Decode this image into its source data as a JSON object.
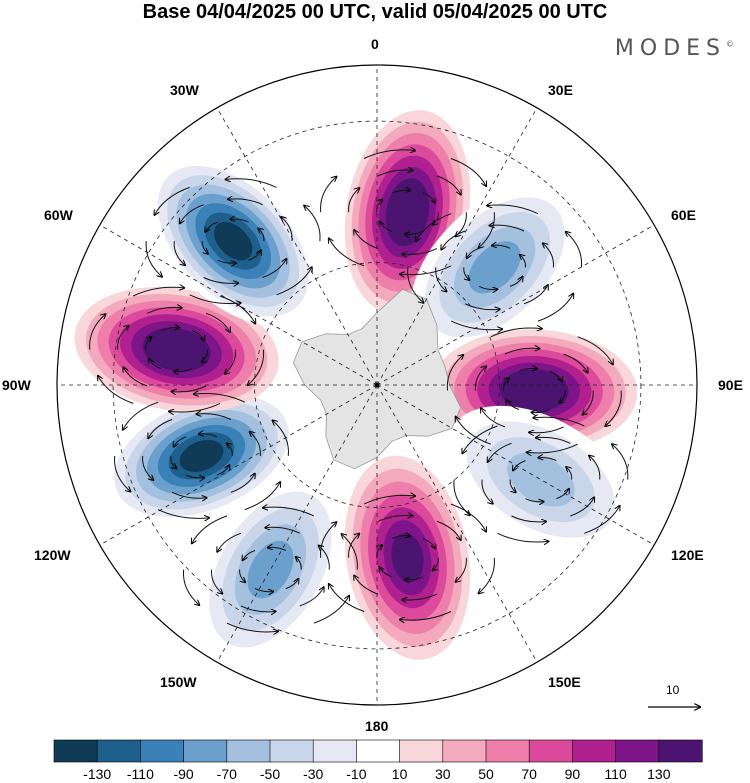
{
  "title": "Base 04/04/2025 00 UTC, valid 05/04/2025 00 UTC",
  "logo": {
    "text": "MODES",
    "mark": "©"
  },
  "longitude_labels": {
    "top": "0",
    "top_right": "30E",
    "right_upper": "60E",
    "right": "90E",
    "right_lower": "120E",
    "bottom_right": "150E",
    "bottom": "180",
    "bottom_left": "150W",
    "left_lower": "120W",
    "left": "90W",
    "left_upper": "60W",
    "top_left": "30W"
  },
  "reference_vector": {
    "label": "10"
  },
  "colorbar": {
    "labels": [
      "-130",
      "-110",
      "-90",
      "-70",
      "-50",
      "-30",
      "-10",
      "10",
      "30",
      "50",
      "70",
      "90",
      "110",
      "130"
    ],
    "colors": [
      "#0f3b57",
      "#1f5f8b",
      "#3a81b8",
      "#6ba0cc",
      "#a3c0de",
      "#c9d6ea",
      "#e6e8f3",
      "#ffffff",
      "#f9d6da",
      "#f4aabd",
      "#ee7fab",
      "#dc4a9c",
      "#b0208e",
      "#7d1588",
      "#4a1470"
    ]
  },
  "field": {
    "projection": "south-polar-stereographic",
    "pattern": "wavenumber-5 alternating positive/negative anomalies",
    "anomaly_centres": [
      {
        "lon": 10,
        "lat": -48,
        "value": 130
      },
      {
        "lon": 45,
        "lat": -50,
        "value": -70
      },
      {
        "lon": 92,
        "lat": -52,
        "value": 130
      },
      {
        "lon": 120,
        "lat": -45,
        "value": -50
      },
      {
        "lon": 170,
        "lat": -48,
        "value": 110
      },
      {
        "lon": -150,
        "lat": -40,
        "value": -70
      },
      {
        "lon": -112,
        "lat": -45,
        "value": -130
      },
      {
        "lon": -80,
        "lat": -42,
        "value": 130
      },
      {
        "lon": -45,
        "lat": -42,
        "value": -130
      }
    ]
  }
}
